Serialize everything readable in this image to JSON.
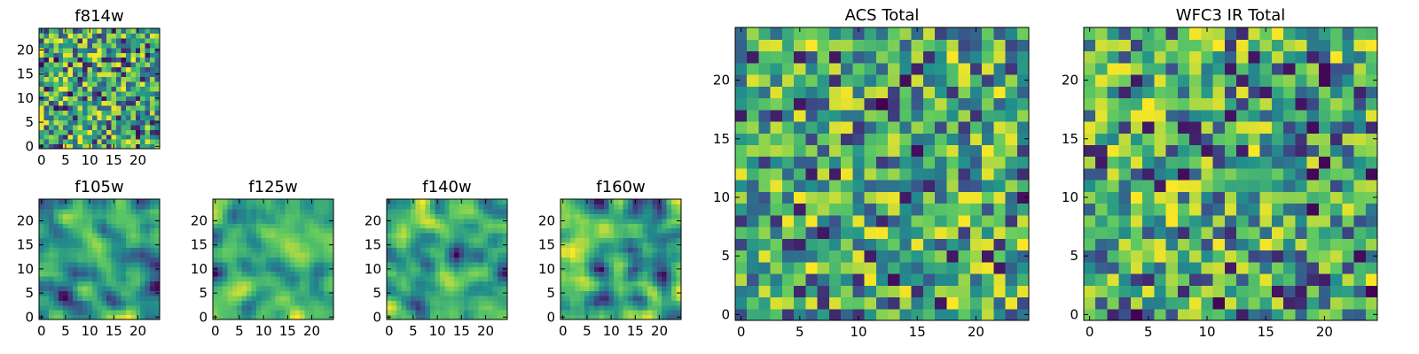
{
  "figure_title": "",
  "colormap": "viridis",
  "colormap_stops": [
    "#440154",
    "#3b528b",
    "#21918c",
    "#5ec962",
    "#fde725"
  ],
  "chart_data": [
    {
      "id": "f814w",
      "type": "heatmap",
      "title": "f814w",
      "grid_size": 25,
      "value_range": [
        0,
        1
      ],
      "seed": 814,
      "smooth": 0,
      "xticks": [
        0,
        5,
        10,
        15,
        20
      ],
      "yticks": [
        0,
        5,
        10,
        15,
        20
      ],
      "xlim": [
        -0.5,
        24.5
      ],
      "ylim": [
        -0.5,
        24.5
      ]
    },
    {
      "id": "f105w",
      "type": "heatmap",
      "title": "f105w",
      "grid_size": 25,
      "value_range": [
        0,
        1
      ],
      "seed": 105,
      "smooth": 2,
      "xticks": [
        0,
        5,
        10,
        15,
        20
      ],
      "yticks": [
        0,
        5,
        10,
        15,
        20
      ],
      "xlim": [
        -0.5,
        24.5
      ],
      "ylim": [
        -0.5,
        24.5
      ]
    },
    {
      "id": "f125w",
      "type": "heatmap",
      "title": "f125w",
      "grid_size": 25,
      "value_range": [
        0,
        1
      ],
      "seed": 125,
      "smooth": 2,
      "xticks": [
        0,
        5,
        10,
        15,
        20
      ],
      "yticks": [
        0,
        5,
        10,
        15,
        20
      ],
      "xlim": [
        -0.5,
        24.5
      ],
      "ylim": [
        -0.5,
        24.5
      ]
    },
    {
      "id": "f140w",
      "type": "heatmap",
      "title": "f140w",
      "grid_size": 25,
      "value_range": [
        0,
        1
      ],
      "seed": 140,
      "smooth": 2,
      "xticks": [
        0,
        5,
        10,
        15,
        20
      ],
      "yticks": [
        0,
        5,
        10,
        15,
        20
      ],
      "xlim": [
        -0.5,
        24.5
      ],
      "ylim": [
        -0.5,
        24.5
      ]
    },
    {
      "id": "f160w",
      "type": "heatmap",
      "title": "f160w",
      "grid_size": 25,
      "value_range": [
        0,
        1
      ],
      "seed": 160,
      "smooth": 2,
      "xticks": [
        0,
        5,
        10,
        15,
        20
      ],
      "yticks": [
        0,
        5,
        10,
        15,
        20
      ],
      "xlim": [
        -0.5,
        24.5
      ],
      "ylim": [
        -0.5,
        24.5
      ]
    },
    {
      "id": "acs_total",
      "type": "heatmap",
      "title": "ACS Total",
      "grid_size": 25,
      "value_range": [
        0,
        1
      ],
      "seed": 2001,
      "smooth": 0,
      "xticks": [
        0,
        5,
        10,
        15,
        20
      ],
      "yticks": [
        0,
        5,
        10,
        15,
        20
      ],
      "xlim": [
        -0.5,
        24.5
      ],
      "ylim": [
        -0.5,
        24.5
      ]
    },
    {
      "id": "wfc3_ir_total",
      "type": "heatmap",
      "title": "WFC3 IR Total",
      "grid_size": 25,
      "value_range": [
        0,
        1
      ],
      "seed": 3001,
      "smooth": 0,
      "xticks": [
        0,
        5,
        10,
        15,
        20
      ],
      "yticks": [
        0,
        5,
        10,
        15,
        20
      ],
      "xlim": [
        -0.5,
        24.5
      ],
      "ylim": [
        -0.5,
        24.5
      ]
    }
  ]
}
